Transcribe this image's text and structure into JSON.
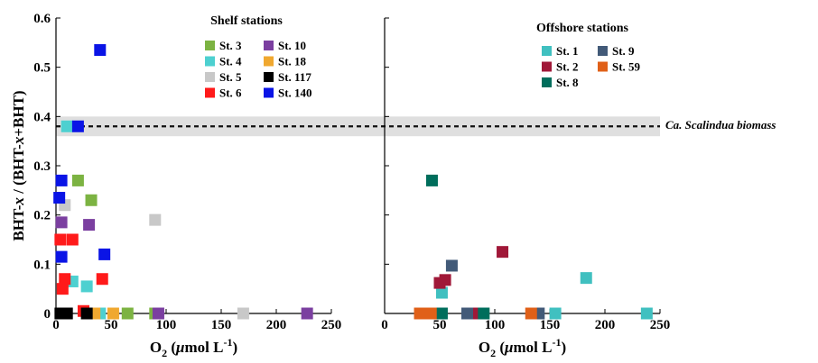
{
  "chart_data": [
    {
      "type": "scatter",
      "panel": "left",
      "xlim": [
        0,
        250
      ],
      "ylim": [
        0,
        0.6
      ],
      "xticks": [
        "0",
        "50",
        "100",
        "150",
        "200",
        "250"
      ],
      "yticks": [
        "0",
        "0.1",
        "0.2",
        "0.3",
        "0.4",
        "0.5",
        "0.6"
      ],
      "ylabel": "BHT-x / (BHT-x+BHT)",
      "xlabel": "O2 (μmol L-1)",
      "legend_title": "Shelf stations",
      "legend_placement": "top-right",
      "series": [
        {
          "name": "St. 3",
          "color": "#7cb342",
          "points": [
            [
              20,
              0.27
            ],
            [
              32,
              0.23
            ],
            [
              65,
              0
            ],
            [
              90,
              0
            ]
          ]
        },
        {
          "name": "St. 4",
          "color": "#4dd0d0",
          "points": [
            [
              10,
              0.38
            ],
            [
              15,
              0.065
            ],
            [
              28,
              0.055
            ],
            [
              40,
              0
            ]
          ]
        },
        {
          "name": "St. 5",
          "color": "#c8c8c8",
          "points": [
            [
              8,
              0.22
            ],
            [
              90,
              0.19
            ],
            [
              170,
              0
            ]
          ]
        },
        {
          "name": "St. 6",
          "color": "#ff1a1a",
          "points": [
            [
              4,
              0.15
            ],
            [
              15,
              0.15
            ],
            [
              42,
              0.07
            ],
            [
              8,
              0.07
            ],
            [
              6,
              0.05
            ],
            [
              25,
              0.005
            ]
          ]
        },
        {
          "name": "St. 10",
          "color": "#7b3fa0",
          "points": [
            [
              5,
              0.185
            ],
            [
              30,
              0.18
            ],
            [
              93,
              0
            ],
            [
              228,
              0
            ]
          ]
        },
        {
          "name": "St. 18",
          "color": "#f0a830",
          "points": [
            [
              35,
              0
            ],
            [
              52,
              0
            ]
          ]
        },
        {
          "name": "St. 117",
          "color": "#000000",
          "points": [
            [
              4,
              0
            ],
            [
              10,
              0
            ],
            [
              28,
              0
            ]
          ]
        },
        {
          "name": "St. 140",
          "color": "#0a14e6",
          "points": [
            [
              40,
              0.535
            ],
            [
              20,
              0.38
            ],
            [
              5,
              0.27
            ],
            [
              3,
              0.235
            ],
            [
              5,
              0.115
            ],
            [
              44,
              0.12
            ]
          ]
        }
      ],
      "reference_band": {
        "center": 0.38,
        "range": [
          0.36,
          0.4
        ]
      }
    },
    {
      "type": "scatter",
      "panel": "right",
      "xlim": [
        0,
        250
      ],
      "ylim": [
        0,
        0.6
      ],
      "xticks": [
        "0",
        "50",
        "100",
        "150",
        "200",
        "250"
      ],
      "xlabel": "O2 (μmol L-1)",
      "legend_title": "Offshore stations",
      "legend_placement": "top-right",
      "reference_label": "Ca. Scalindua biomass",
      "series": [
        {
          "name": "St. 1",
          "color": "#40c0c0",
          "points": [
            [
              183,
              0.072
            ],
            [
              52,
              0.042
            ],
            [
              155,
              0
            ],
            [
              238,
              0
            ]
          ]
        },
        {
          "name": "St. 2",
          "color": "#a01838",
          "points": [
            [
              107,
              0.125
            ],
            [
              55,
              0.068
            ],
            [
              50,
              0.062
            ],
            [
              82,
              0
            ]
          ]
        },
        {
          "name": "St. 8",
          "color": "#006e5c",
          "points": [
            [
              43,
              0.27
            ],
            [
              52,
              0
            ],
            [
              90,
              0
            ]
          ]
        },
        {
          "name": "St. 9",
          "color": "#425a78",
          "points": [
            [
              61,
              0.097
            ],
            [
              75,
              0
            ],
            [
              140,
              0
            ]
          ]
        },
        {
          "name": "St. 59",
          "color": "#e06018",
          "points": [
            [
              32,
              0
            ],
            [
              42,
              0
            ],
            [
              133,
              0
            ]
          ]
        }
      ]
    }
  ]
}
